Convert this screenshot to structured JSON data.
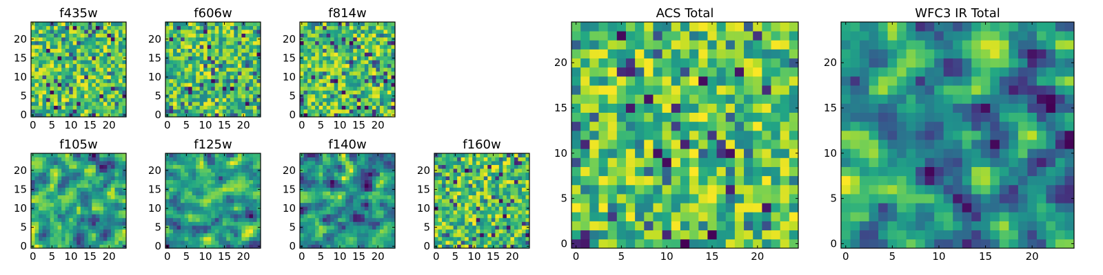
{
  "chart_data": [
    {
      "type": "heatmap",
      "title": "f435w",
      "xlim": [
        0,
        24
      ],
      "ylim": [
        0,
        24
      ],
      "xticks": [
        "0",
        "5",
        "10",
        "15",
        "20"
      ],
      "yticks": [
        "0",
        "5",
        "10",
        "15",
        "20"
      ],
      "grid_size": 25,
      "colormap": "viridis",
      "seed": 11,
      "smooth": 0
    },
    {
      "type": "heatmap",
      "title": "f606w",
      "xlim": [
        0,
        24
      ],
      "ylim": [
        0,
        24
      ],
      "xticks": [
        "0",
        "5",
        "10",
        "15",
        "20"
      ],
      "yticks": [
        "0",
        "5",
        "10",
        "15",
        "20"
      ],
      "grid_size": 25,
      "colormap": "viridis",
      "seed": 23,
      "smooth": 0
    },
    {
      "type": "heatmap",
      "title": "f814w",
      "xlim": [
        0,
        24
      ],
      "ylim": [
        0,
        24
      ],
      "xticks": [
        "0",
        "5",
        "10",
        "15",
        "20"
      ],
      "yticks": [
        "0",
        "5",
        "10",
        "15",
        "20"
      ],
      "grid_size": 25,
      "colormap": "viridis",
      "seed": 37,
      "smooth": 0
    },
    {
      "type": "heatmap",
      "title": "f105w",
      "xlim": [
        0,
        24
      ],
      "ylim": [
        0,
        24
      ],
      "xticks": [
        "0",
        "5",
        "10",
        "15",
        "20"
      ],
      "yticks": [
        "0",
        "5",
        "10",
        "15",
        "20"
      ],
      "grid_size": 25,
      "colormap": "viridis",
      "seed": 41,
      "smooth": 1
    },
    {
      "type": "heatmap",
      "title": "f125w",
      "xlim": [
        0,
        24
      ],
      "ylim": [
        0,
        24
      ],
      "xticks": [
        "0",
        "5",
        "10",
        "15",
        "20"
      ],
      "yticks": [
        "0",
        "5",
        "10",
        "15",
        "20"
      ],
      "grid_size": 25,
      "colormap": "viridis",
      "seed": 53,
      "smooth": 1
    },
    {
      "type": "heatmap",
      "title": "f140w",
      "xlim": [
        0,
        24
      ],
      "ylim": [
        0,
        24
      ],
      "xticks": [
        "0",
        "5",
        "10",
        "15",
        "20"
      ],
      "yticks": [
        "0",
        "5",
        "10",
        "15",
        "20"
      ],
      "grid_size": 25,
      "colormap": "viridis",
      "seed": 67,
      "smooth": 1
    },
    {
      "type": "heatmap",
      "title": "f160w",
      "xlim": [
        0,
        24
      ],
      "ylim": [
        0,
        24
      ],
      "xticks": [
        "0",
        "5",
        "10",
        "15",
        "20"
      ],
      "yticks": [
        "0",
        "5",
        "10",
        "15",
        "20"
      ],
      "grid_size": 25,
      "colormap": "viridis",
      "seed": 79,
      "smooth": 0
    },
    {
      "type": "heatmap",
      "title": "ACS Total",
      "xlim": [
        0,
        24
      ],
      "ylim": [
        0,
        24
      ],
      "xticks": [
        "0",
        "5",
        "10",
        "15",
        "20"
      ],
      "yticks": [
        "0",
        "5",
        "10",
        "15",
        "20"
      ],
      "grid_size": 25,
      "colormap": "viridis",
      "seed": 97,
      "smooth": 0
    },
    {
      "type": "heatmap",
      "title": "WFC3 IR Total",
      "xlim": [
        0,
        24
      ],
      "ylim": [
        0,
        24
      ],
      "xticks": [
        "0",
        "5",
        "10",
        "15",
        "20"
      ],
      "yticks": [
        "0",
        "5",
        "10",
        "15",
        "20"
      ],
      "grid_size": 25,
      "colormap": "viridis",
      "seed": 131,
      "smooth": 1
    }
  ]
}
